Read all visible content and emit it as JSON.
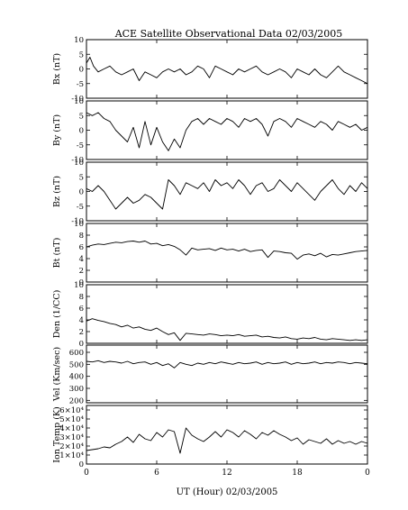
{
  "figure": {
    "title": "ACE Satellite Observational Data   02/03/2005",
    "xlabel": "UT (Hour)   02/03/2005"
  },
  "chart_data": [
    {
      "type": "line",
      "ylabel": "Bx (nT)",
      "x_ticks": [
        "0",
        "6",
        "12",
        "18",
        "0"
      ],
      "y_ticks": [
        "10",
        "5",
        "0",
        "-5",
        "-10"
      ],
      "xlim": [
        0,
        24
      ],
      "ylim": [
        -10,
        10
      ],
      "x": [
        0,
        0.3,
        0.6,
        1,
        1.5,
        2,
        2.5,
        3,
        3.5,
        4,
        4.5,
        5,
        5.5,
        6,
        6.5,
        7,
        7.5,
        8,
        8.5,
        9,
        9.5,
        10,
        10.5,
        11,
        11.5,
        12,
        12.5,
        13,
        13.5,
        14,
        14.5,
        15,
        15.5,
        16,
        16.5,
        17,
        17.5,
        18,
        18.5,
        19,
        19.5,
        20,
        20.5,
        21,
        21.5,
        22,
        22.5,
        23,
        23.5,
        24
      ],
      "y": [
        2,
        4,
        1,
        -1,
        0,
        1,
        -1,
        -2,
        -1,
        0,
        -4,
        -1,
        -2,
        -3,
        -1,
        0,
        -1,
        0,
        -2,
        -1,
        1,
        0,
        -3,
        1,
        0,
        -1,
        -2,
        0,
        -1,
        0,
        1,
        -1,
        -2,
        -1,
        0,
        -1,
        -3,
        0,
        -1,
        -2,
        0,
        -2,
        -3,
        -1,
        1,
        -1,
        -2,
        -3,
        -4,
        -5
      ]
    },
    {
      "type": "line",
      "ylabel": "By (nT)",
      "x_ticks": [
        "0",
        "6",
        "12",
        "18",
        "0"
      ],
      "y_ticks": [
        "10",
        "5",
        "0",
        "-5",
        "-10"
      ],
      "xlim": [
        0,
        24
      ],
      "ylim": [
        -10,
        10
      ],
      "x": [
        0,
        0.5,
        1,
        1.5,
        2,
        2.5,
        3,
        3.5,
        4,
        4.5,
        5,
        5.5,
        6,
        6.5,
        7,
        7.5,
        8,
        8.5,
        9,
        9.5,
        10,
        10.5,
        11,
        11.5,
        12,
        12.5,
        13,
        13.5,
        14,
        14.5,
        15,
        15.5,
        16,
        16.5,
        17,
        17.5,
        18,
        18.5,
        19,
        19.5,
        20,
        20.5,
        21,
        21.5,
        22,
        22.5,
        23,
        23.5,
        24
      ],
      "y": [
        6,
        5,
        6,
        4,
        3,
        0,
        -2,
        -4,
        1,
        -6,
        3,
        -5,
        1,
        -4,
        -7,
        -3,
        -6,
        0,
        3,
        4,
        2,
        4,
        3,
        2,
        4,
        3,
        1,
        4,
        3,
        4,
        2,
        -2,
        3,
        4,
        3,
        1,
        4,
        3,
        2,
        1,
        3,
        2,
        0,
        3,
        2,
        1,
        2,
        0,
        1
      ]
    },
    {
      "type": "line",
      "ylabel": "Bz (nT)",
      "x_ticks": [
        "0",
        "6",
        "12",
        "18",
        "0"
      ],
      "y_ticks": [
        "10",
        "5",
        "0",
        "-5",
        "-10"
      ],
      "xlim": [
        0,
        24
      ],
      "ylim": [
        -10,
        10
      ],
      "x": [
        0,
        0.5,
        1,
        1.5,
        2,
        2.5,
        3,
        3.5,
        4,
        4.5,
        5,
        5.5,
        6,
        6.5,
        7,
        7.5,
        8,
        8.5,
        9,
        9.5,
        10,
        10.5,
        11,
        11.5,
        12,
        12.5,
        13,
        13.5,
        14,
        14.5,
        15,
        15.5,
        16,
        16.5,
        17,
        17.5,
        18,
        18.5,
        19,
        19.5,
        20,
        20.5,
        21,
        21.5,
        22,
        22.5,
        23,
        23.5,
        24
      ],
      "y": [
        1,
        0,
        2,
        0,
        -3,
        -6,
        -4,
        -2,
        -4,
        -3,
        -1,
        -2,
        -4,
        -6,
        4,
        2,
        -1,
        3,
        2,
        1,
        3,
        0,
        4,
        2,
        3,
        1,
        4,
        2,
        -1,
        2,
        3,
        0,
        1,
        4,
        2,
        0,
        3,
        1,
        -1,
        -3,
        0,
        2,
        4,
        1,
        -1,
        2,
        0,
        3,
        1
      ]
    },
    {
      "type": "line",
      "ylabel": "Bt (nT)",
      "x_ticks": [
        "0",
        "6",
        "12",
        "18",
        "0"
      ],
      "y_ticks": [
        "10",
        "8",
        "6",
        "4",
        "2",
        "0"
      ],
      "xlim": [
        0,
        24
      ],
      "ylim": [
        0,
        10
      ],
      "x": [
        0,
        0.5,
        1,
        1.5,
        2,
        2.5,
        3,
        3.5,
        4,
        4.5,
        5,
        5.5,
        6,
        6.5,
        7,
        7.5,
        8,
        8.5,
        9,
        9.5,
        10,
        10.5,
        11,
        11.5,
        12,
        12.5,
        13,
        13.5,
        14,
        14.5,
        15,
        15.5,
        16,
        16.5,
        17,
        17.5,
        18,
        18.5,
        19,
        19.5,
        20,
        20.5,
        21,
        21.5,
        22,
        22.5,
        23,
        23.5,
        24
      ],
      "y": [
        6,
        6.3,
        6.5,
        6.4,
        6.6,
        6.8,
        6.7,
        6.9,
        7,
        6.8,
        7,
        6.5,
        6.6,
        6.2,
        6.4,
        6.1,
        5.5,
        4.6,
        5.8,
        5.5,
        5.6,
        5.7,
        5.4,
        5.8,
        5.5,
        5.6,
        5.3,
        5.6,
        5.2,
        5.4,
        5.5,
        4.2,
        5.3,
        5.2,
        5,
        4.9,
        3.9,
        4.6,
        4.8,
        4.5,
        4.9,
        4.3,
        4.7,
        4.6,
        4.8,
        5,
        5.2,
        5.3,
        5.4
      ]
    },
    {
      "type": "line",
      "ylabel": "Den (1/CC)",
      "x_ticks": [
        "0",
        "6",
        "12",
        "18",
        "0"
      ],
      "y_ticks": [
        "10",
        "8",
        "6",
        "4",
        "2",
        "0"
      ],
      "xlim": [
        0,
        24
      ],
      "ylim": [
        0,
        10
      ],
      "x": [
        0,
        0.5,
        1,
        1.5,
        2,
        2.5,
        3,
        3.5,
        4,
        4.5,
        5,
        5.5,
        6,
        6.5,
        7,
        7.5,
        8,
        8.5,
        9,
        9.5,
        10,
        10.5,
        11,
        11.5,
        12,
        12.5,
        13,
        13.5,
        14,
        14.5,
        15,
        15.5,
        16,
        16.5,
        17,
        17.5,
        18,
        18.5,
        19,
        19.5,
        20,
        20.5,
        21,
        21.5,
        22,
        22.5,
        23,
        23.5,
        24
      ],
      "y": [
        3.8,
        4.2,
        3.9,
        3.7,
        3.4,
        3.2,
        2.8,
        3.1,
        2.6,
        2.8,
        2.4,
        2.2,
        2.6,
        2,
        1.5,
        1.8,
        0.5,
        1.7,
        1.6,
        1.5,
        1.4,
        1.6,
        1.5,
        1.3,
        1.4,
        1.3,
        1.5,
        1.2,
        1.3,
        1.4,
        1.1,
        1.2,
        1,
        0.9,
        1.1,
        0.8,
        0.7,
        0.9,
        0.8,
        1,
        0.7,
        0.6,
        0.8,
        0.7,
        0.6,
        0.5,
        0.6,
        0.5,
        0.6
      ]
    },
    {
      "type": "line",
      "ylabel": "Vel (Km/sec)",
      "x_ticks": [
        "0",
        "6",
        "12",
        "18",
        "0"
      ],
      "y_ticks": [
        "600",
        "500",
        "400",
        "300",
        "200"
      ],
      "xlim": [
        0,
        24
      ],
      "ylim": [
        180,
        660
      ],
      "x": [
        0,
        0.5,
        1,
        1.5,
        2,
        2.5,
        3,
        3.5,
        4,
        4.5,
        5,
        5.5,
        6,
        6.5,
        7,
        7.5,
        8,
        8.5,
        9,
        9.5,
        10,
        10.5,
        11,
        11.5,
        12,
        12.5,
        13,
        13.5,
        14,
        14.5,
        15,
        15.5,
        16,
        16.5,
        17,
        17.5,
        18,
        18.5,
        19,
        19.5,
        20,
        20.5,
        21,
        21.5,
        22,
        22.5,
        23,
        23.5,
        24
      ],
      "y": [
        525,
        520,
        530,
        515,
        525,
        520,
        510,
        525,
        505,
        515,
        520,
        500,
        515,
        490,
        505,
        470,
        515,
        500,
        490,
        510,
        500,
        515,
        505,
        520,
        510,
        500,
        515,
        505,
        510,
        520,
        500,
        515,
        505,
        510,
        520,
        500,
        515,
        505,
        510,
        520,
        505,
        515,
        510,
        520,
        515,
        505,
        515,
        510,
        505
      ]
    },
    {
      "type": "line",
      "ylabel": "Ion Temp (K)",
      "x_ticks": [
        "0",
        "6",
        "12",
        "18",
        "0"
      ],
      "y_ticks": [
        "6×10⁴",
        "5×10⁴",
        "4×10⁴",
        "3×10⁴",
        "2×10⁴",
        "1×10⁴",
        "0"
      ],
      "xlim": [
        0,
        24
      ],
      "ylim": [
        0,
        65000
      ],
      "x": [
        0,
        0.5,
        1,
        1.5,
        2,
        2.5,
        3,
        3.5,
        4,
        4.5,
        5,
        5.5,
        6,
        6.5,
        7,
        7.5,
        8,
        8.5,
        9,
        9.5,
        10,
        10.5,
        11,
        11.5,
        12,
        12.5,
        13,
        13.5,
        14,
        14.5,
        15,
        15.5,
        16,
        16.5,
        17,
        17.5,
        18,
        18.5,
        19,
        19.5,
        20,
        20.5,
        21,
        21.5,
        22,
        22.5,
        23,
        23.5,
        24
      ],
      "y": [
        15000,
        16000,
        17000,
        19000,
        18000,
        22000,
        25000,
        30000,
        24000,
        33000,
        28000,
        26000,
        35000,
        30000,
        38000,
        36000,
        12000,
        40000,
        32000,
        28000,
        25000,
        30000,
        36000,
        30000,
        38000,
        35000,
        30000,
        37000,
        33000,
        28000,
        35000,
        32000,
        37000,
        33000,
        30000,
        26000,
        29000,
        22000,
        27000,
        25000,
        23000,
        28000,
        22000,
        26000,
        23000,
        25000,
        22000,
        25000,
        23000
      ]
    }
  ]
}
